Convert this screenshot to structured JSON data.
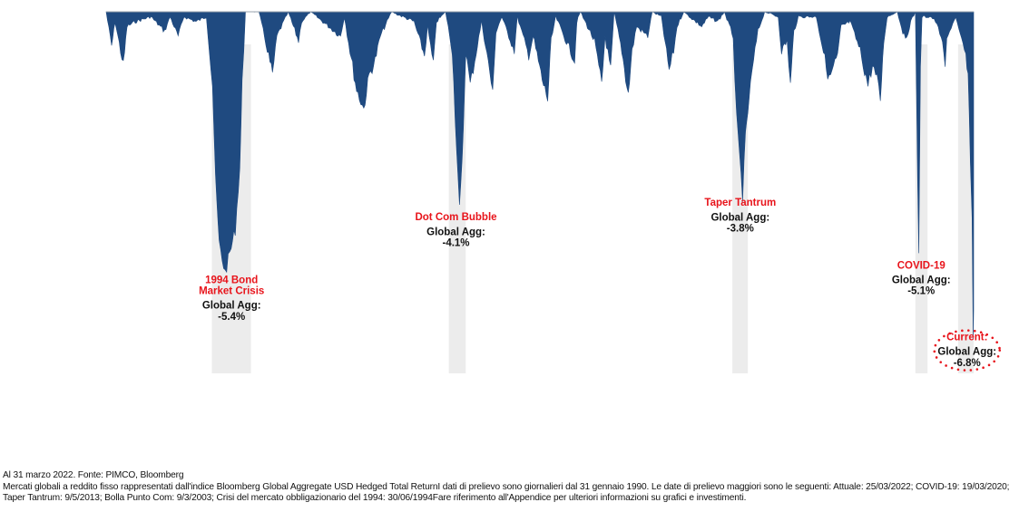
{
  "chart_data": {
    "type": "area",
    "x_range": [
      "1990-01-31",
      "2022-03-31"
    ],
    "ylim": [
      -7.5,
      0
    ],
    "ylabel": "",
    "xlabel": "",
    "grid": false,
    "series": [
      {
        "color": "#1f4a80",
        "points": [
          [
            "1990-01-31",
            0
          ],
          [
            "1990-04-15",
            -0.7
          ],
          [
            "1990-06-01",
            -0.2
          ],
          [
            "1990-09-20",
            -1.1
          ],
          [
            "1990-11-10",
            -0.3
          ],
          [
            "1991-03-01",
            -0.2
          ],
          [
            "1991-10-01",
            -0.1
          ],
          [
            "1992-04-01",
            -0.4
          ],
          [
            "1992-06-15",
            -0.1
          ],
          [
            "1992-10-01",
            -0.5
          ],
          [
            "1992-12-20",
            -0.1
          ],
          [
            "1993-06-01",
            -0.2
          ],
          [
            "1993-10-20",
            -0.1
          ],
          [
            "1994-01-10",
            -1.5
          ],
          [
            "1994-02-20",
            -3.5
          ],
          [
            "1994-04-10",
            -4.8
          ],
          [
            "1994-06-30",
            -5.4
          ],
          [
            "1994-09-01",
            -5.0
          ],
          [
            "1994-11-15",
            -4.5
          ],
          [
            "1995-01-15",
            -3.2
          ],
          [
            "1995-02-15",
            -1.5
          ],
          [
            "1995-04-01",
            0
          ],
          [
            "1995-10-01",
            0
          ],
          [
            "1996-02-10",
            -0.9
          ],
          [
            "1996-04-01",
            -1.3
          ],
          [
            "1996-06-01",
            -0.5
          ],
          [
            "1996-09-01",
            -0.2
          ],
          [
            "1996-11-01",
            0
          ],
          [
            "1997-03-20",
            -0.6
          ],
          [
            "1997-05-01",
            -0.2
          ],
          [
            "1997-09-01",
            0
          ],
          [
            "1998-10-10",
            -0.5
          ],
          [
            "1998-12-01",
            -0.1
          ],
          [
            "1999-02-15",
            -0.8
          ],
          [
            "1999-05-15",
            -1.6
          ],
          [
            "1999-08-20",
            -2.0
          ],
          [
            "1999-11-01",
            -1.3
          ],
          [
            "2000-01-20",
            -1.0
          ],
          [
            "2000-04-01",
            -0.5
          ],
          [
            "2000-07-01",
            -0.2
          ],
          [
            "2000-09-01",
            0
          ],
          [
            "2001-07-01",
            -0.2
          ],
          [
            "2001-11-20",
            -0.9
          ],
          [
            "2002-01-01",
            -0.3
          ],
          [
            "2002-03-20",
            -1.1
          ],
          [
            "2002-05-01",
            -0.2
          ],
          [
            "2002-09-01",
            0
          ],
          [
            "2002-12-01",
            -0.8
          ],
          [
            "2003-03-09",
            -4.1
          ],
          [
            "2003-04-15",
            -3.1
          ],
          [
            "2003-06-01",
            -0.8
          ],
          [
            "2003-08-01",
            -1.5
          ],
          [
            "2003-10-01",
            -1.0
          ],
          [
            "2004-01-01",
            -0.2
          ],
          [
            "2004-04-20",
            -1.2
          ],
          [
            "2004-06-01",
            -1.7
          ],
          [
            "2004-07-15",
            -0.4
          ],
          [
            "2004-10-01",
            -0.1
          ],
          [
            "2005-03-20",
            -0.8
          ],
          [
            "2005-05-01",
            -0.1
          ],
          [
            "2005-10-01",
            -0.9
          ],
          [
            "2005-12-01",
            -0.5
          ],
          [
            "2006-04-01",
            -1.4
          ],
          [
            "2006-06-15",
            -1.8
          ],
          [
            "2006-08-01",
            -0.6
          ],
          [
            "2006-10-01",
            -0.1
          ],
          [
            "2007-06-15",
            -1.0
          ],
          [
            "2007-07-15",
            -0.2
          ],
          [
            "2007-09-01",
            0
          ],
          [
            "2008-03-10",
            -0.6
          ],
          [
            "2008-06-15",
            -1.5
          ],
          [
            "2008-08-01",
            -0.5
          ],
          [
            "2008-10-15",
            -1.2
          ],
          [
            "2008-12-01",
            0
          ],
          [
            "2009-03-15",
            -0.8
          ],
          [
            "2009-06-10",
            -1.7
          ],
          [
            "2009-08-01",
            -0.8
          ],
          [
            "2009-10-01",
            -0.3
          ],
          [
            "2010-03-01",
            -0.5
          ],
          [
            "2010-05-01",
            0
          ],
          [
            "2010-09-01",
            -0.1
          ],
          [
            "2010-12-15",
            -1.2
          ],
          [
            "2011-02-15",
            -0.8
          ],
          [
            "2011-04-01",
            -0.3
          ],
          [
            "2011-07-01",
            0
          ],
          [
            "2012-03-01",
            -0.3
          ],
          [
            "2012-06-01",
            -0.1
          ],
          [
            "2012-10-01",
            -0.2
          ],
          [
            "2013-01-01",
            0
          ],
          [
            "2013-05-01",
            -0.5
          ],
          [
            "2013-06-15",
            -2.2
          ],
          [
            "2013-09-05",
            -3.8
          ],
          [
            "2013-10-15",
            -2.6
          ],
          [
            "2013-12-01",
            -1.8
          ],
          [
            "2014-02-01",
            -1.0
          ],
          [
            "2014-04-01",
            -0.4
          ],
          [
            "2014-07-01",
            0
          ],
          [
            "2015-01-01",
            -0.1
          ],
          [
            "2015-02-15",
            -0.8
          ],
          [
            "2015-05-01",
            -0.6
          ],
          [
            "2015-06-15",
            -1.5
          ],
          [
            "2015-08-01",
            -0.4
          ],
          [
            "2015-10-01",
            -0.1
          ],
          [
            "2016-06-01",
            -0.1
          ],
          [
            "2016-11-20",
            -1.4
          ],
          [
            "2017-01-01",
            -1.2
          ],
          [
            "2017-03-15",
            -0.9
          ],
          [
            "2017-05-01",
            -0.3
          ],
          [
            "2017-09-01",
            -0.2
          ],
          [
            "2018-01-15",
            -0.8
          ],
          [
            "2018-03-15",
            -1.2
          ],
          [
            "2018-05-01",
            -1.5
          ],
          [
            "2018-07-01",
            -1.1
          ],
          [
            "2018-09-01",
            -1.4
          ],
          [
            "2018-10-15",
            -1.8
          ],
          [
            "2018-12-01",
            -0.6
          ],
          [
            "2019-01-15",
            -0.1
          ],
          [
            "2019-06-01",
            0
          ],
          [
            "2019-09-20",
            -0.6
          ],
          [
            "2019-12-01",
            -0.2
          ],
          [
            "2020-02-01",
            0
          ],
          [
            "2020-03-19",
            -5.1
          ],
          [
            "2020-04-10",
            -1.2
          ],
          [
            "2020-05-01",
            -0.1
          ],
          [
            "2020-09-01",
            -0.1
          ],
          [
            "2020-11-01",
            -0.2
          ],
          [
            "2021-01-15",
            -0.5
          ],
          [
            "2021-03-10",
            -1.1
          ],
          [
            "2021-04-01",
            -0.6
          ],
          [
            "2021-06-01",
            -0.3
          ],
          [
            "2021-08-01",
            -0.1
          ],
          [
            "2021-10-01",
            -0.5
          ],
          [
            "2021-12-15",
            -0.9
          ],
          [
            "2022-01-15",
            -1.4
          ],
          [
            "2022-02-15",
            -3.0
          ],
          [
            "2022-03-10",
            -4.3
          ],
          [
            "2022-03-25",
            -6.8
          ],
          [
            "2022-03-31",
            -6.2
          ]
        ]
      }
    ],
    "highlight_bands": [
      {
        "start": "1994-01-01",
        "end": "1995-06-15",
        "color": "#ececec"
      },
      {
        "start": "2002-10-15",
        "end": "2003-06-01",
        "color": "#ececec"
      },
      {
        "start": "2013-04-20",
        "end": "2013-11-15",
        "color": "#ececec"
      },
      {
        "start": "2020-02-01",
        "end": "2020-07-15",
        "color": "#ececec"
      },
      {
        "start": "2021-09-01",
        "end": "2022-03-31",
        "color": "#ececec"
      }
    ],
    "annotations": [
      {
        "title_lines": [
          "1994 Bond",
          "Market Crisis"
        ],
        "sub_lines": [
          "Global Agg:",
          "-5.4%"
        ],
        "date": "1994-09-25",
        "value": -5.4
      },
      {
        "title_lines": [
          "Dot Com Bubble"
        ],
        "sub_lines": [
          "Global Agg:",
          "-4.1%"
        ],
        "date": "2003-01-20",
        "value": -4.1
      },
      {
        "title_lines": [
          "Taper Tantrum"
        ],
        "sub_lines": [
          "Global Agg:",
          "-3.8%"
        ],
        "date": "2013-08-05",
        "value": -3.8
      },
      {
        "title_lines": [
          "COVID-19"
        ],
        "sub_lines": [
          "Global Agg:",
          "-5.1%"
        ],
        "date": "2020-04-20",
        "value": -5.1
      },
      {
        "title_lines": [
          "Current:"
        ],
        "sub_lines": [
          "Global Agg:",
          "-6.8%"
        ],
        "date": "2022-01-01",
        "value": -6.8,
        "circled": true
      }
    ]
  },
  "footer": {
    "source": "Al 31 marzo 2022. Fonte: PIMCO, Bloomberg",
    "note_line1": "Mercati globali a reddito fisso rappresentati dall'indice Bloomberg Global Aggregate USD Hedged Total ReturnI dati di prelievo sono giornalieri dal 31 gennaio 1990. Le date di prelievo maggiori sono le seguenti: Attuale: 25/03/2022; COVID-19: 19/03/2020;",
    "note_line2": "Taper Tantrum: 9/5/2013; Bolla Punto Com: 9/3/2003; Crisi del mercato obbligazionario del 1994: 30/06/1994Fare riferimento all'Appendice per ulteriori informazioni su grafici e investimenti."
  }
}
